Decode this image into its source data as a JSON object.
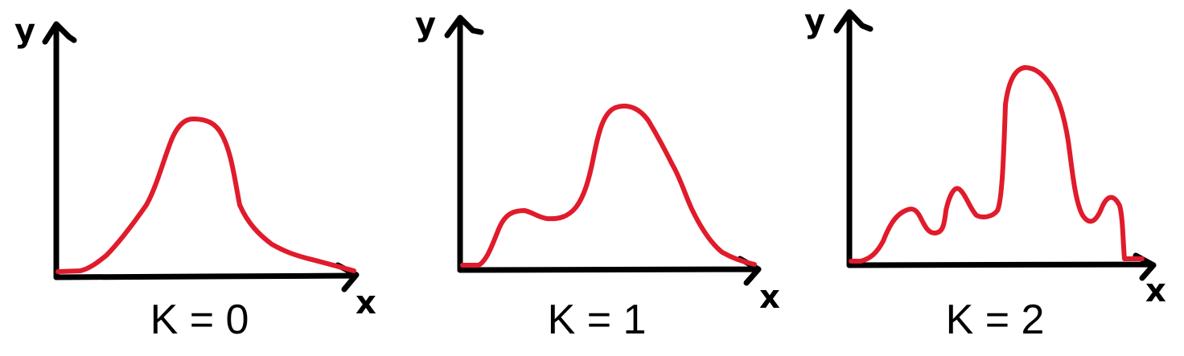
{
  "panels": [
    {
      "label": "K = 0",
      "x_axis_label": "x",
      "y_axis_label": "y"
    },
    {
      "label": "K = 1",
      "x_axis_label": "x",
      "y_axis_label": "y"
    },
    {
      "label": "K = 2",
      "x_axis_label": "x",
      "y_axis_label": "y"
    }
  ],
  "colors": {
    "axis": "#000000",
    "curve": "#e01b2b"
  }
}
